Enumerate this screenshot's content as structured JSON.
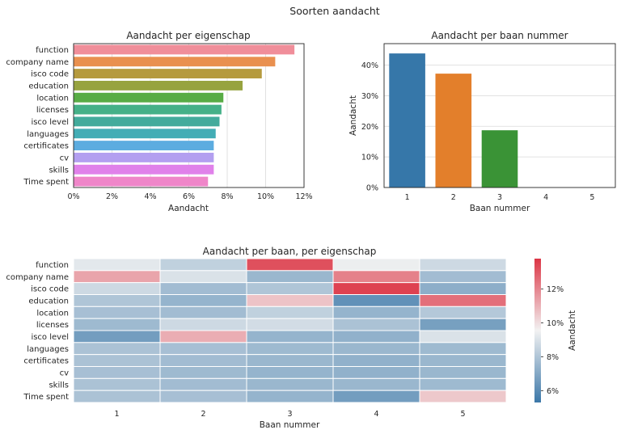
{
  "figure": {
    "suptitle": "Soorten aandacht"
  },
  "chart_data": [
    {
      "type": "bar",
      "orientation": "horizontal",
      "title": "Aandacht per eigenschap",
      "xlabel": "Aandacht",
      "ylabel": "",
      "xlim": [
        0,
        12
      ],
      "xticks": [
        "0%",
        "2%",
        "4%",
        "6%",
        "8%",
        "10%",
        "12%"
      ],
      "grid": true,
      "categories": [
        "function",
        "company name",
        "isco code",
        "education",
        "location",
        "licenses",
        "isco level",
        "languages",
        "certificates",
        "cv",
        "skills",
        "Time spent"
      ],
      "values": [
        11.5,
        10.5,
        9.8,
        8.8,
        7.8,
        7.7,
        7.6,
        7.4,
        7.3,
        7.3,
        7.3,
        7.0
      ],
      "colors": [
        "#f08e9a",
        "#e9904f",
        "#b59a3e",
        "#97a33f",
        "#58ac45",
        "#45b088",
        "#43ab9c",
        "#43adb5",
        "#5cace0",
        "#b39ff0",
        "#e081ea",
        "#ef86c9"
      ]
    },
    {
      "type": "bar",
      "title": "Aandacht per baan nummer",
      "xlabel": "Baan nummer",
      "ylabel": "Aandacht",
      "ylim": [
        0,
        47
      ],
      "yticks": [
        "0%",
        "10%",
        "20%",
        "30%",
        "40%"
      ],
      "grid": true,
      "categories": [
        "1",
        "2",
        "3",
        "4",
        "5"
      ],
      "values": [
        43.8,
        37.2,
        18.7,
        0,
        0
      ],
      "colors": [
        "#3677a9",
        "#e37f2b",
        "#3a9336",
        "#c23e3e",
        "#8a6fb3"
      ]
    },
    {
      "type": "heatmap",
      "title": "Aandacht per baan, per eigenschap",
      "xlabel": "Baan nummer",
      "ylabel": "",
      "x": [
        "1",
        "2",
        "3",
        "4",
        "5"
      ],
      "y": [
        "function",
        "company name",
        "isco code",
        "education",
        "location",
        "licenses",
        "isco level",
        "languages",
        "certificates",
        "cv",
        "skills",
        "Time spent"
      ],
      "z": [
        [
          9.2,
          8.4,
          13.2,
          9.4,
          8.7
        ],
        [
          11.3,
          9.0,
          7.5,
          12.1,
          7.7
        ],
        [
          8.7,
          7.7,
          8.0,
          13.5,
          7.2
        ],
        [
          8.0,
          7.4,
          10.6,
          6.2,
          12.5
        ],
        [
          7.8,
          7.7,
          8.4,
          7.4,
          8.1
        ],
        [
          7.6,
          8.7,
          8.8,
          7.9,
          6.7
        ],
        [
          6.6,
          11.1,
          7.4,
          7.3,
          9.0
        ],
        [
          7.9,
          7.8,
          7.6,
          7.5,
          7.6
        ],
        [
          7.9,
          7.7,
          7.5,
          7.3,
          7.5
        ],
        [
          7.8,
          7.6,
          7.4,
          7.3,
          7.5
        ],
        [
          7.9,
          7.7,
          7.5,
          7.5,
          7.6
        ],
        [
          7.9,
          7.8,
          7.4,
          6.6,
          10.5
        ]
      ],
      "colorbar": {
        "label": "Aandacht",
        "range": [
          5.3,
          13.8
        ],
        "ticks": [
          6,
          8,
          10,
          12
        ],
        "tick_labels": [
          "6%",
          "8%",
          "10%",
          "12%"
        ],
        "low_color": "#3b77a8",
        "mid_color": "#f2f2f2",
        "high_color": "#dc3545"
      }
    }
  ]
}
